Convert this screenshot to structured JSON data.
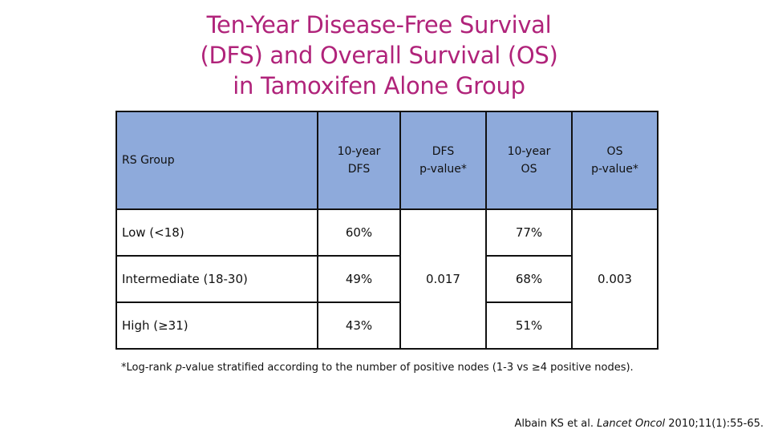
{
  "slide": {
    "title_lines": [
      "Ten-Year Disease-Free Survival",
      "(DFS) and Overall Survival (OS)",
      "in Tamoxifen Alone Group"
    ]
  },
  "table": {
    "headers": {
      "rs_group": "RS Group",
      "dfs_10yr": [
        "10-year",
        "DFS"
      ],
      "dfs_p": [
        "DFS",
        "p-value*"
      ],
      "os_10yr": [
        "10-year",
        "OS"
      ],
      "os_p": [
        "OS",
        "p-value*"
      ]
    },
    "rows": [
      {
        "group": "Low (<18)",
        "dfs": "60%",
        "os": "77%"
      },
      {
        "group": "Intermediate (18-30)",
        "dfs": "49%",
        "os": "68%"
      },
      {
        "group": "High (≥31)",
        "dfs": "43%",
        "os": "51%"
      }
    ],
    "dfs_p_value": "0.017",
    "os_p_value": "0.003",
    "header_color": "#8eaadb"
  },
  "footnote": {
    "prefix": "*Log-rank ",
    "italic": "p",
    "suffix": "-value stratified according to the number of positive nodes (1-3 vs ≥4 positive nodes)."
  },
  "citation": {
    "authors": "Albain KS et al. ",
    "journal": "Lancet Oncol",
    "details": " 2010;11(1):55-65."
  },
  "colors": {
    "title": "#b0237a",
    "header_fill": "#8eaadb",
    "border": "#111111"
  }
}
